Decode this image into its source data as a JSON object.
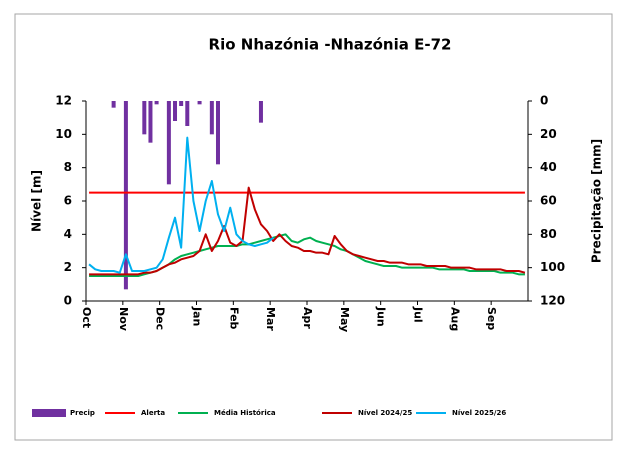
{
  "chart_data": {
    "type": "line",
    "title": "Rio Nhazónia -Nhazónia E-72",
    "y_label": "Nível [m]",
    "y2_label": "Precipitação  [mm]",
    "categories": [
      "Oct",
      null,
      null,
      null,
      null,
      null,
      "Nov",
      null,
      null,
      null,
      null,
      null,
      "Dec",
      null,
      null,
      null,
      null,
      null,
      "Jan",
      null,
      null,
      null,
      null,
      null,
      "Feb",
      null,
      null,
      null,
      null,
      null,
      "Mar",
      null,
      null,
      null,
      null,
      null,
      "Apr",
      null,
      null,
      null,
      null,
      null,
      "May",
      null,
      null,
      null,
      null,
      null,
      "Jun",
      null,
      null,
      null,
      null,
      null,
      "Jul",
      null,
      null,
      null,
      null,
      null,
      "Aug",
      null,
      null,
      null,
      null,
      null,
      "Sep",
      null,
      null,
      null,
      null,
      null
    ],
    "ylim": [
      0,
      12
    ],
    "yticks": [
      0,
      2,
      4,
      6,
      8,
      10,
      12
    ],
    "y2lim": [
      0,
      120
    ],
    "y2ticks": [
      0,
      20,
      40,
      60,
      80,
      100,
      120
    ],
    "y2_reversed": true,
    "grid": false,
    "legend": "bottom",
    "series": [
      {
        "name": "Precip",
        "type": "bar",
        "axis": "y2",
        "color": "#7030a0",
        "values": [
          0,
          0,
          0,
          0,
          4,
          0,
          113,
          0,
          0,
          20,
          25,
          2,
          0,
          50,
          12,
          3,
          15,
          0,
          2,
          0,
          20,
          38,
          0,
          0,
          0,
          0,
          0,
          0,
          13,
          0,
          0,
          0,
          0,
          0,
          0,
          0,
          0,
          0,
          0,
          0,
          0,
          0,
          0,
          0,
          0,
          0,
          0,
          0,
          0,
          0,
          0,
          0,
          0,
          0,
          0,
          0,
          0,
          0,
          0,
          0,
          0,
          0,
          0,
          0,
          0,
          0,
          0,
          0,
          0,
          0,
          0,
          0
        ]
      },
      {
        "name": "Alerta",
        "type": "line",
        "color": "#ff0000",
        "values": [
          6.5,
          6.5,
          6.5,
          6.5,
          6.5,
          6.5,
          6.5,
          6.5,
          6.5,
          6.5,
          6.5,
          6.5,
          6.5,
          6.5,
          6.5,
          6.5,
          6.5,
          6.5,
          6.5,
          6.5,
          6.5,
          6.5,
          6.5,
          6.5,
          6.5,
          6.5,
          6.5,
          6.5,
          6.5,
          6.5,
          6.5,
          6.5,
          6.5,
          6.5,
          6.5,
          6.5,
          6.5,
          6.5,
          6.5,
          6.5,
          6.5,
          6.5,
          6.5,
          6.5,
          6.5,
          6.5,
          6.5,
          6.5,
          6.5,
          6.5,
          6.5,
          6.5,
          6.5,
          6.5,
          6.5,
          6.5,
          6.5,
          6.5,
          6.5,
          6.5,
          6.5,
          6.5,
          6.5,
          6.5,
          6.5,
          6.5,
          6.5,
          6.5,
          6.5,
          6.5,
          6.5,
          6.5
        ]
      },
      {
        "name": "Média Histórica",
        "type": "line",
        "color": "#00b050",
        "values": [
          1.5,
          1.5,
          1.5,
          1.5,
          1.5,
          1.5,
          1.5,
          1.5,
          1.5,
          1.6,
          1.7,
          1.8,
          2.0,
          2.2,
          2.5,
          2.7,
          2.8,
          2.9,
          3.0,
          3.1,
          3.2,
          3.3,
          3.3,
          3.3,
          3.3,
          3.4,
          3.4,
          3.5,
          3.6,
          3.7,
          3.8,
          3.9,
          4.0,
          3.6,
          3.5,
          3.7,
          3.8,
          3.6,
          3.5,
          3.4,
          3.3,
          3.1,
          3.0,
          2.8,
          2.6,
          2.4,
          2.3,
          2.2,
          2.1,
          2.1,
          2.1,
          2.0,
          2.0,
          2.0,
          2.0,
          2.0,
          2.0,
          1.9,
          1.9,
          1.9,
          1.9,
          1.9,
          1.8,
          1.8,
          1.8,
          1.8,
          1.8,
          1.7,
          1.7,
          1.7,
          1.6,
          1.6
        ]
      },
      {
        "name": "Nível 2024/25",
        "type": "line",
        "color": "#c00000",
        "values": [
          1.6,
          1.6,
          1.6,
          1.6,
          1.6,
          1.6,
          1.6,
          1.6,
          1.6,
          1.7,
          1.7,
          1.8,
          2.0,
          2.2,
          2.3,
          2.5,
          2.6,
          2.7,
          3.0,
          4.0,
          3.0,
          3.6,
          4.5,
          3.5,
          3.3,
          3.6,
          6.8,
          5.5,
          4.6,
          4.2,
          3.6,
          4.0,
          3.6,
          3.3,
          3.2,
          3.0,
          3.0,
          2.9,
          2.9,
          2.8,
          3.9,
          3.4,
          3.0,
          2.8,
          2.7,
          2.6,
          2.5,
          2.4,
          2.4,
          2.3,
          2.3,
          2.3,
          2.2,
          2.2,
          2.2,
          2.1,
          2.1,
          2.1,
          2.1,
          2.0,
          2.0,
          2.0,
          2.0,
          1.9,
          1.9,
          1.9,
          1.9,
          1.9,
          1.8,
          1.8,
          1.8,
          1.7
        ]
      },
      {
        "name": "Nível 2025/26",
        "type": "line",
        "color": "#00b0f0",
        "values": [
          2.2,
          1.9,
          1.8,
          1.8,
          1.8,
          1.7,
          2.8,
          1.8,
          1.8,
          1.8,
          1.9,
          2.0,
          2.5,
          3.8,
          5.0,
          3.2,
          9.8,
          6.0,
          4.2,
          6.0,
          7.2,
          5.2,
          4.2,
          5.6,
          4.0,
          3.6,
          3.4,
          3.3,
          3.4,
          3.5,
          3.8,
          null,
          null,
          null,
          null,
          null,
          null,
          null,
          null,
          null,
          null,
          null,
          null,
          null,
          null,
          null,
          null,
          null,
          null,
          null,
          null,
          null,
          null,
          null,
          null,
          null,
          null,
          null,
          null,
          null,
          null,
          null,
          null,
          null,
          null,
          null,
          null,
          null,
          null,
          null,
          null,
          null
        ]
      }
    ]
  }
}
